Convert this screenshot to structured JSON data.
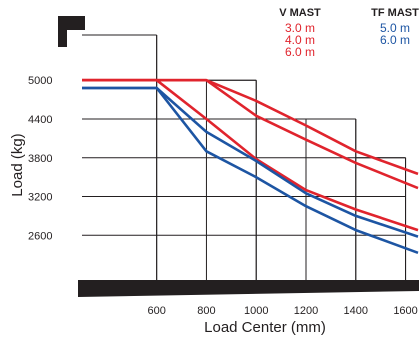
{
  "chart_data": {
    "type": "line",
    "xlabel": "Load Center (mm)",
    "ylabel": "Load (kg)",
    "x_ticks": [
      600,
      800,
      1000,
      1200,
      1400,
      1600
    ],
    "y_ticks": [
      2600,
      3200,
      3800,
      4400,
      5000
    ],
    "xlim": [
      300,
      1650
    ],
    "ylim": [
      1800,
      5700
    ],
    "legend_placement": "top-right",
    "legend_groups": [
      {
        "title": "V MAST",
        "entries": [
          "3.0 m",
          "4.0 m",
          "6.0 m"
        ],
        "color": "#e0242d"
      },
      {
        "title": "TF MAST",
        "entries": [
          "5.0 m",
          "6.0 m"
        ],
        "color": "#1d55a3"
      }
    ],
    "series": [
      {
        "color": "#e0242d",
        "x": [
          300,
          800,
          1000,
          1200,
          1400,
          1650
        ],
        "y": [
          5000,
          5000,
          4680,
          4300,
          3900,
          3550
        ]
      },
      {
        "color": "#e0242d",
        "x": [
          300,
          800,
          1000,
          1200,
          1400,
          1650
        ],
        "y": [
          5000,
          5000,
          4450,
          4080,
          3720,
          3330
        ]
      },
      {
        "color": "#e0242d",
        "x": [
          300,
          600,
          800,
          1000,
          1200,
          1400,
          1650
        ],
        "y": [
          5000,
          5000,
          4400,
          3780,
          3300,
          3000,
          2680
        ]
      },
      {
        "color": "#1d55a3",
        "x": [
          300,
          600,
          800,
          1000,
          1200,
          1400,
          1650
        ],
        "y": [
          4880,
          4880,
          4200,
          3750,
          3250,
          2900,
          2580
        ]
      },
      {
        "color": "#1d55a3",
        "x": [
          300,
          600,
          800,
          1000,
          1200,
          1400,
          1650
        ],
        "y": [
          4880,
          4880,
          3900,
          3500,
          3050,
          2680,
          2330
        ]
      }
    ],
    "grid_steps": [
      {
        "x": [
          300,
          600
        ],
        "y": 5700
      },
      {
        "x": [
          600,
          1000
        ],
        "y": 5000
      },
      {
        "x": [
          1000,
          1400
        ],
        "y": 4400
      },
      {
        "x": [
          1400,
          1600
        ],
        "y": 3800
      }
    ]
  }
}
